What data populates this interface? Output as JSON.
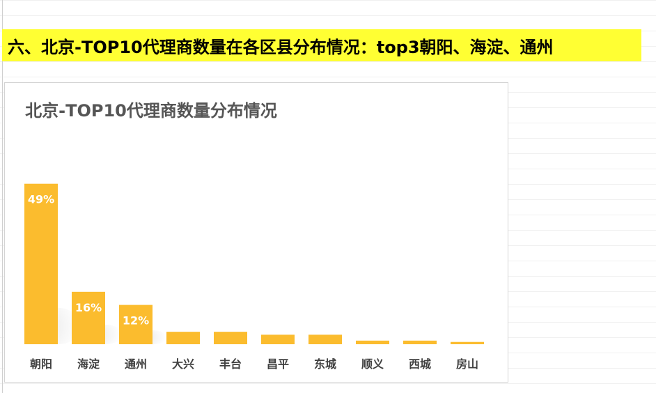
{
  "banner": {
    "text": "六、北京-TOP10代理商数量在各区县分布情况：top3朝阳、海淀、通州"
  },
  "colors": {
    "banner_bg": "#ffff33",
    "bar": "#fbbc2e",
    "title": "#555555",
    "axis_label": "#404040",
    "data_label": "#ffffff"
  },
  "chart_data": {
    "type": "bar",
    "title": "北京-TOP10代理商数量分布情况",
    "categories": [
      "朝阳",
      "海淀",
      "通州",
      "大兴",
      "丰台",
      "昌平",
      "东城",
      "顺义",
      "西城",
      "房山"
    ],
    "values": [
      49,
      16,
      12,
      3.8,
      3.8,
      2.9,
      2.9,
      1.1,
      1.1,
      0.7
    ],
    "data_labels": [
      "49%",
      "16%",
      "12%",
      "",
      "",
      "",
      "",
      "",
      "",
      ""
    ],
    "ylim": [
      0,
      50
    ],
    "grid": false,
    "legend": "none"
  }
}
